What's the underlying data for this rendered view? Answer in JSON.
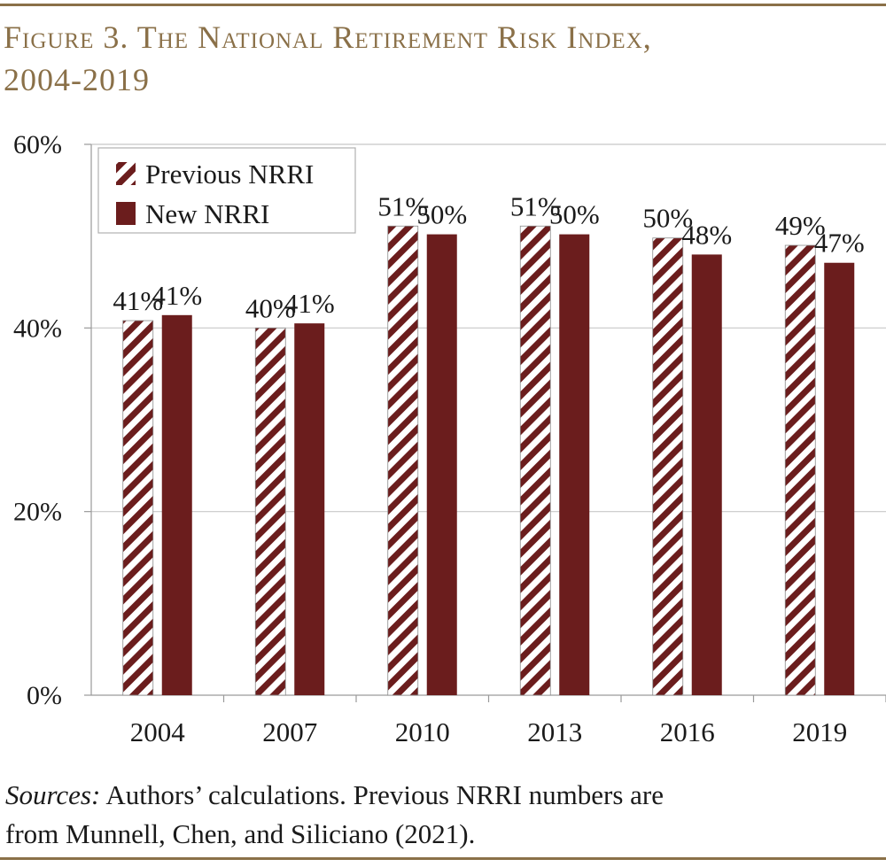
{
  "figure": {
    "title_line1": "Figure 3. The National Retirement Risk Index,",
    "title_line2": "2004-2019"
  },
  "source": {
    "label": "Sources:",
    "text_line1": " Authors’ calculations.  Previous NRRI numbers are",
    "text_line2": "from Munnell, Chen, and Siliciano (2021)."
  },
  "colors": {
    "accent": "#8a7048",
    "bar": "#6b1d1d",
    "grid": "#c8c8c8"
  },
  "chart_data": {
    "type": "bar",
    "categories": [
      "2004",
      "2007",
      "2010",
      "2013",
      "2016",
      "2019"
    ],
    "series": [
      {
        "name": "Previous NRRI",
        "values": [
          40.8,
          40.0,
          51.1,
          51.1,
          49.8,
          49.0
        ],
        "labels": [
          "41%",
          "40%",
          "51%",
          "51%",
          "50%",
          "49%"
        ],
        "style": "diagonal-hatch"
      },
      {
        "name": "New NRRI",
        "values": [
          41.4,
          40.5,
          50.2,
          50.2,
          48.0,
          47.1
        ],
        "labels": [
          "41%",
          "41%",
          "50%",
          "50%",
          "48%",
          "47%"
        ],
        "style": "solid"
      }
    ],
    "ylim": [
      0,
      60
    ],
    "yticks": [
      0,
      20,
      40,
      60
    ],
    "ytick_labels": [
      "0%",
      "20%",
      "40%",
      "60%"
    ],
    "grid": true,
    "legend_position": "top-left"
  }
}
